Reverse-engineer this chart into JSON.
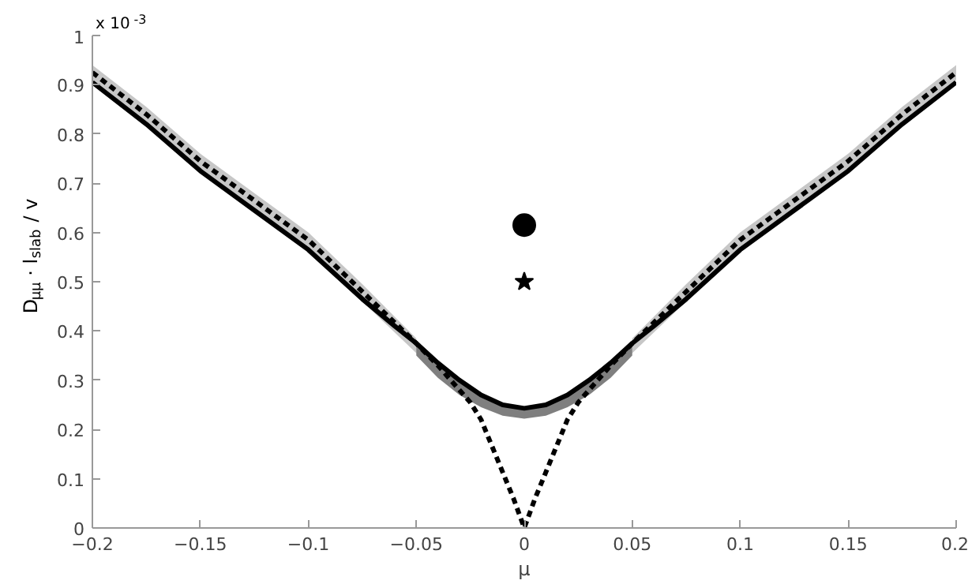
{
  "chart_data": {
    "type": "line",
    "xlabel": "μ",
    "ylabel": "D$_{μμ}$ · l$_{slab}$ / v",
    "annotations": [
      "x 10$^{-3}$"
    ],
    "xlim": [
      -0.2,
      0.2
    ],
    "xticks": [
      -0.2,
      -0.15,
      -0.1,
      -0.05,
      0,
      0.05,
      0.1,
      0.15,
      0.2
    ],
    "ylim": [
      0,
      1
    ],
    "yticks": [
      0,
      0.1,
      0.2,
      0.3,
      0.4,
      0.5,
      0.6,
      0.7,
      0.8,
      0.9,
      1
    ],
    "grid": false,
    "series": [
      {
        "line_style": "solid",
        "color": "#000000",
        "x": [
          -0.2,
          -0.175,
          -0.15,
          -0.125,
          -0.1,
          -0.075,
          -0.06,
          -0.05,
          -0.04,
          -0.03,
          -0.02,
          -0.01,
          0,
          0.01,
          0.02,
          0.03,
          0.04,
          0.05,
          0.06,
          0.075,
          0.1,
          0.125,
          0.15,
          0.175,
          0.2
        ],
        "values": [
          0.905,
          0.82,
          0.725,
          0.645,
          0.565,
          0.465,
          0.41,
          0.375,
          0.335,
          0.3,
          0.27,
          0.25,
          0.243,
          0.25,
          0.27,
          0.3,
          0.335,
          0.375,
          0.41,
          0.465,
          0.565,
          0.645,
          0.725,
          0.82,
          0.905
        ],
        "upper": [
          null,
          null,
          null,
          null,
          null,
          null,
          null,
          0.37,
          0.33,
          0.295,
          0.27,
          0.25,
          0.243,
          0.25,
          0.27,
          0.295,
          0.33,
          0.37,
          null,
          null,
          null,
          null,
          null,
          null,
          null
        ],
        "lower": [
          null,
          null,
          null,
          null,
          null,
          null,
          null,
          0.35,
          0.305,
          0.27,
          0.245,
          0.228,
          0.222,
          0.228,
          0.245,
          0.27,
          0.305,
          0.35,
          null,
          null,
          null,
          null,
          null,
          null,
          null
        ]
      },
      {
        "line_style": "dashed",
        "color": "#000000",
        "x": [
          -0.2,
          -0.175,
          -0.15,
          -0.125,
          -0.1,
          -0.075,
          -0.05,
          -0.04,
          -0.03,
          -0.025,
          -0.02,
          -0.0125,
          -0.005,
          0,
          0.005,
          0.0125,
          0.02,
          0.025,
          0.03,
          0.04,
          0.05,
          0.075,
          0.1,
          0.125,
          0.15,
          0.175,
          0.2
        ],
        "values": [
          0.925,
          0.84,
          0.745,
          0.665,
          0.585,
          0.48,
          0.375,
          0.33,
          0.28,
          0.255,
          0.22,
          0.14,
          0.06,
          0,
          0.06,
          0.14,
          0.22,
          0.255,
          0.28,
          0.33,
          0.375,
          0.48,
          0.585,
          0.665,
          0.745,
          0.84,
          0.925
        ],
        "upper": [
          0.94,
          0.855,
          0.76,
          0.68,
          0.6,
          0.495,
          0.385,
          null,
          null,
          null,
          null,
          null,
          null,
          null,
          null,
          null,
          null,
          null,
          null,
          null,
          0.385,
          0.495,
          0.6,
          0.68,
          0.76,
          0.855,
          0.94
        ],
        "lower": [
          0.91,
          0.825,
          0.73,
          0.65,
          0.57,
          0.46,
          0.355,
          null,
          null,
          null,
          null,
          null,
          null,
          null,
          null,
          null,
          null,
          null,
          null,
          null,
          0.355,
          0.46,
          0.57,
          0.65,
          0.73,
          0.825,
          0.91
        ]
      },
      {
        "type": "scatter",
        "marker": "circle",
        "color": "#000000",
        "x": [
          0
        ],
        "values": [
          0.615
        ]
      },
      {
        "type": "scatter",
        "marker": "star",
        "color": "#000000",
        "x": [
          0
        ],
        "values": [
          0.5
        ]
      }
    ]
  }
}
